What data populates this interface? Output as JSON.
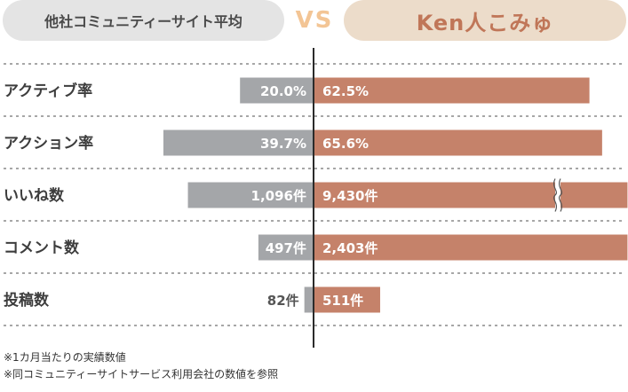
{
  "header": {
    "left_label": "他社コミュニティーサイト平均",
    "vs_label": "VS",
    "right_label": "Ken人こみゅ"
  },
  "colors": {
    "left_bar": "#a4a6a9",
    "right_bar": "#c5826a",
    "divider": "#2b2b2b",
    "grid": "#8a8a8a"
  },
  "chart_data": {
    "type": "bar",
    "orientation": "horizontal-diverging",
    "categories": [
      "アクティブ率",
      "アクション率",
      "いいね数",
      "コメント数",
      "投稿数"
    ],
    "series": [
      {
        "name": "他社コミュニティーサイト平均",
        "values": [
          20.0,
          39.7,
          1096,
          497,
          82
        ],
        "labels": [
          "20.0%",
          "39.7%",
          "1,096件",
          "497件",
          "82件"
        ],
        "relative_length": [
          0.24,
          0.49,
          0.41,
          0.18,
          0.03
        ]
      },
      {
        "name": "Ken人こみゅ",
        "values": [
          62.5,
          65.6,
          9430,
          2403,
          511
        ],
        "labels": [
          "62.5%",
          "65.6%",
          "9,430件",
          "2,403件",
          "511件"
        ],
        "relative_length": [
          0.87,
          0.91,
          0.99,
          0.99,
          0.21
        ],
        "broken_axis": [
          false,
          false,
          true,
          false,
          false
        ]
      }
    ],
    "grid": "dashed row separators"
  },
  "notes": [
    "※1カ月当たりの実績数値",
    "※同コミュニティーサイトサービス利用会社の数値を参照"
  ]
}
